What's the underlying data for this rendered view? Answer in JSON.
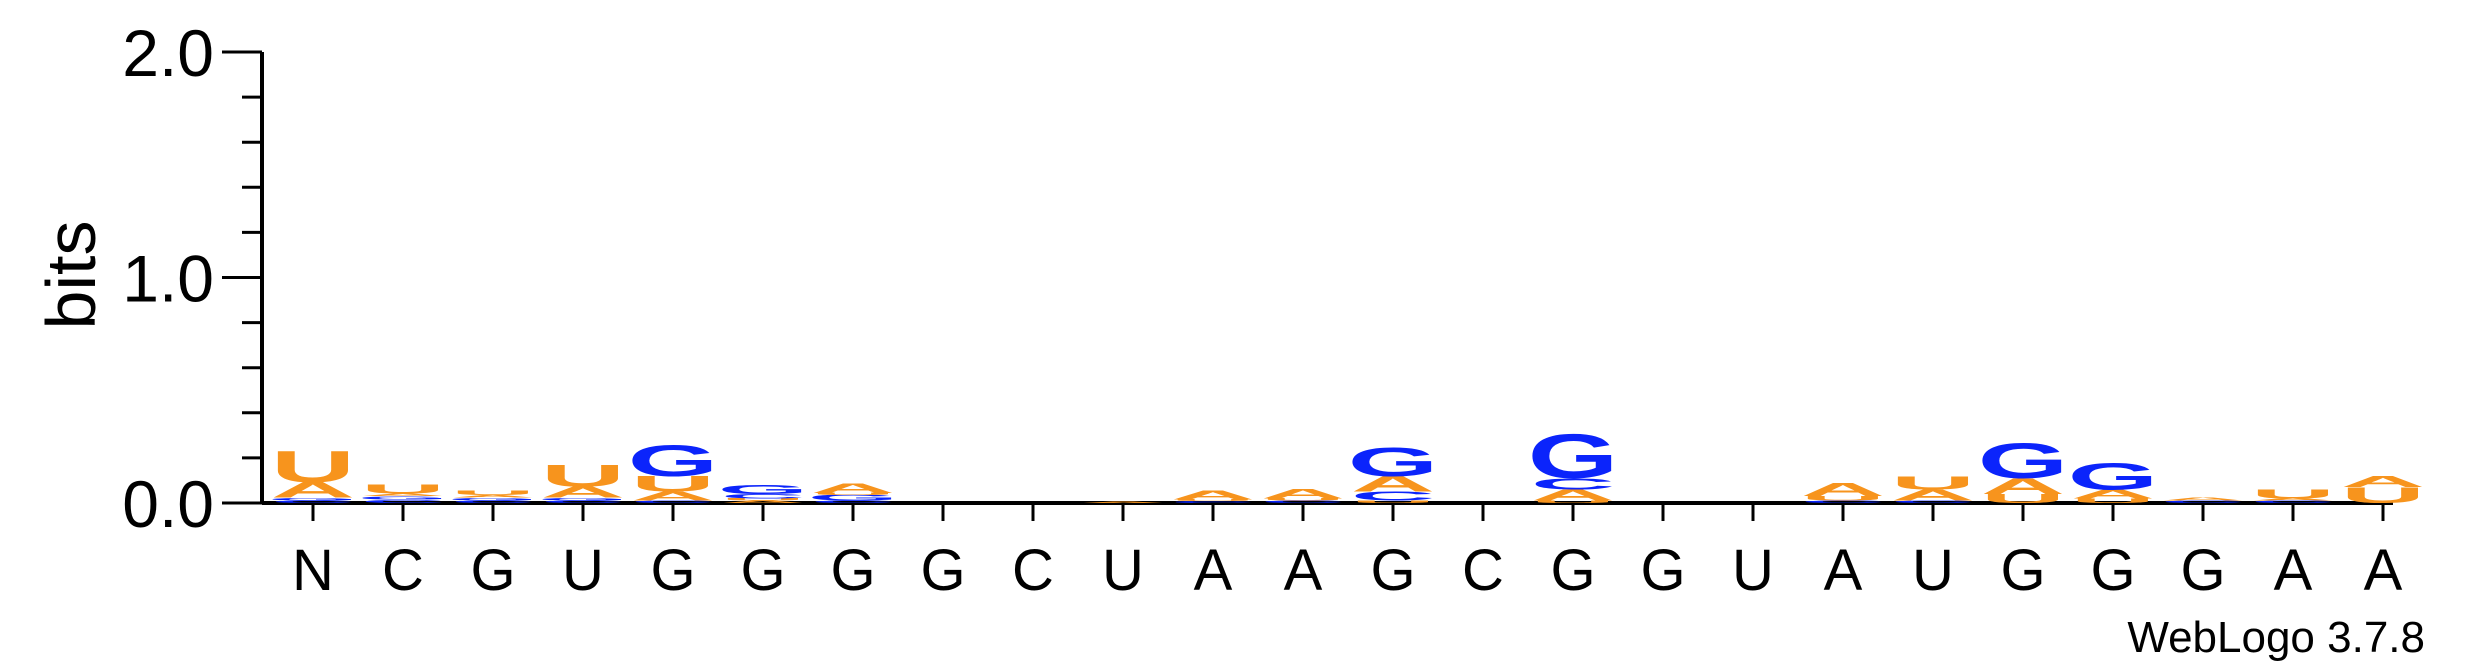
{
  "chart_data": {
    "type": "sequence-logo",
    "ylabel": "bits",
    "ylim": [
      0,
      2.0
    ],
    "yticks": [
      {
        "value": 0.0,
        "label": "0.0"
      },
      {
        "value": 1.0,
        "label": "1.0"
      },
      {
        "value": 2.0,
        "label": "2.0"
      }
    ],
    "x_labels": [
      "N",
      "C",
      "G",
      "U",
      "G",
      "G",
      "G",
      "G",
      "C",
      "U",
      "A",
      "A",
      "G",
      "C",
      "G",
      "G",
      "U",
      "A",
      "U",
      "G",
      "G",
      "G",
      "A",
      "A"
    ],
    "colors": {
      "A": "#f7941d",
      "U": "#f7941d",
      "G": "#0b24fb",
      "C": "#0b24fb"
    },
    "positions": [
      {
        "position": 1,
        "stack": [
          {
            "letter": "C",
            "bits": 0.012
          },
          {
            "letter": "G",
            "bits": 0.012
          },
          {
            "letter": "A",
            "bits": 0.07
          },
          {
            "letter": "U",
            "bits": 0.14
          }
        ]
      },
      {
        "position": 2,
        "stack": [
          {
            "letter": "C",
            "bits": 0.015
          },
          {
            "letter": "G",
            "bits": 0.015
          },
          {
            "letter": "A",
            "bits": 0.012
          },
          {
            "letter": "U",
            "bits": 0.04
          }
        ]
      },
      {
        "position": 3,
        "stack": [
          {
            "letter": "C",
            "bits": 0.012
          },
          {
            "letter": "G",
            "bits": 0.012
          },
          {
            "letter": "A",
            "bits": 0.012
          },
          {
            "letter": "U",
            "bits": 0.02
          }
        ]
      },
      {
        "position": 4,
        "stack": [
          {
            "letter": "C",
            "bits": 0.012
          },
          {
            "letter": "G",
            "bits": 0.012
          },
          {
            "letter": "A",
            "bits": 0.05
          },
          {
            "letter": "U",
            "bits": 0.1
          }
        ]
      },
      {
        "position": 5,
        "stack": [
          {
            "letter": "C",
            "bits": 0.01
          },
          {
            "letter": "A",
            "bits": 0.04
          },
          {
            "letter": "U",
            "bits": 0.07
          },
          {
            "letter": "G",
            "bits": 0.14
          }
        ]
      },
      {
        "position": 6,
        "stack": [
          {
            "letter": "A",
            "bits": 0.01
          },
          {
            "letter": "U",
            "bits": 0.01
          },
          {
            "letter": "C",
            "bits": 0.02
          },
          {
            "letter": "G",
            "bits": 0.04
          }
        ]
      },
      {
        "position": 7,
        "stack": [
          {
            "letter": "C",
            "bits": 0.01
          },
          {
            "letter": "G",
            "bits": 0.025
          },
          {
            "letter": "U",
            "bits": 0.01
          },
          {
            "letter": "A",
            "bits": 0.045
          }
        ]
      },
      {
        "position": 8,
        "stack": []
      },
      {
        "position": 9,
        "stack": []
      },
      {
        "position": 10,
        "stack": [
          {
            "letter": "A",
            "bits": 0.005
          }
        ]
      },
      {
        "position": 11,
        "stack": [
          {
            "letter": "C",
            "bits": 0.008
          },
          {
            "letter": "U",
            "bits": 0.008
          },
          {
            "letter": "A",
            "bits": 0.04
          }
        ]
      },
      {
        "position": 12,
        "stack": [
          {
            "letter": "C",
            "bits": 0.01
          },
          {
            "letter": "U",
            "bits": 0.01
          },
          {
            "letter": "A",
            "bits": 0.045
          }
        ]
      },
      {
        "position": 13,
        "stack": [
          {
            "letter": "U",
            "bits": 0.01
          },
          {
            "letter": "C",
            "bits": 0.04
          },
          {
            "letter": "A",
            "bits": 0.07
          },
          {
            "letter": "G",
            "bits": 0.13
          }
        ]
      },
      {
        "position": 14,
        "stack": []
      },
      {
        "position": 15,
        "stack": [
          {
            "letter": "U",
            "bits": 0.01
          },
          {
            "letter": "A",
            "bits": 0.05
          },
          {
            "letter": "C",
            "bits": 0.05
          },
          {
            "letter": "G",
            "bits": 0.2
          }
        ]
      },
      {
        "position": 16,
        "stack": []
      },
      {
        "position": 17,
        "stack": []
      },
      {
        "position": 18,
        "stack": [
          {
            "letter": "C",
            "bits": 0.01
          },
          {
            "letter": "U",
            "bits": 0.02
          },
          {
            "letter": "A",
            "bits": 0.06
          }
        ]
      },
      {
        "position": 19,
        "stack": [
          {
            "letter": "C",
            "bits": 0.01
          },
          {
            "letter": "A",
            "bits": 0.05
          },
          {
            "letter": "U",
            "bits": 0.06
          }
        ]
      },
      {
        "position": 20,
        "stack": [
          {
            "letter": "U",
            "bits": 0.04
          },
          {
            "letter": "A",
            "bits": 0.07
          },
          {
            "letter": "G",
            "bits": 0.16
          }
        ]
      },
      {
        "position": 21,
        "stack": [
          {
            "letter": "U",
            "bits": 0.02
          },
          {
            "letter": "A",
            "bits": 0.04
          },
          {
            "letter": "G",
            "bits": 0.12
          }
        ]
      },
      {
        "position": 22,
        "stack": [
          {
            "letter": "C",
            "bits": 0.01
          },
          {
            "letter": "A",
            "bits": 0.015
          }
        ]
      },
      {
        "position": 23,
        "stack": [
          {
            "letter": "C",
            "bits": 0.01
          },
          {
            "letter": "A",
            "bits": 0.01
          },
          {
            "letter": "U",
            "bits": 0.04
          }
        ]
      },
      {
        "position": 24,
        "stack": [
          {
            "letter": "U",
            "bits": 0.07
          },
          {
            "letter": "A",
            "bits": 0.05
          }
        ]
      }
    ]
  },
  "footer": {
    "credit": "WebLogo 3.7.8"
  }
}
